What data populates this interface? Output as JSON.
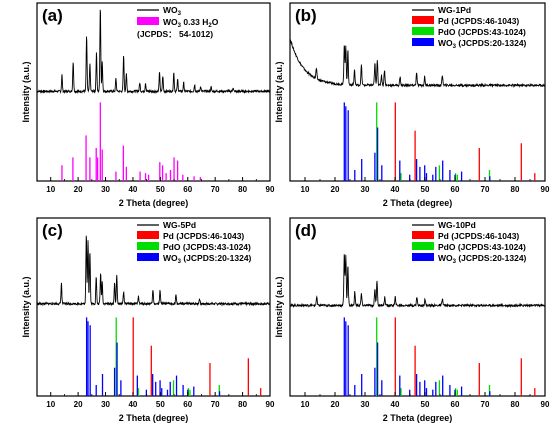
{
  "colors": {
    "xrd_pattern": "#000000",
    "wo3_hydrate_ref": "#ff00ff",
    "pd_ref": "#ff0000",
    "pdo_ref": "#00dd00",
    "wo3_ref": "#0000ff"
  },
  "chart_data": [
    {
      "panel": "(a)",
      "type": "line",
      "xlabel": "2 Theta (degree)",
      "ylabel": "Intensity (a.u.)",
      "xlim": [
        5,
        90
      ],
      "xticks": [
        10,
        20,
        30,
        40,
        50,
        60,
        70,
        80,
        90
      ],
      "legend": [
        {
          "label": "WO",
          "sub": "3",
          "rest": "",
          "color": "#000000",
          "kind": "line"
        },
        {
          "label": "WO",
          "sub": "3",
          "rest": " 0.33 H",
          "sub2": "2",
          "rest2": "O",
          "color": "#ff00ff",
          "kind": "box"
        },
        {
          "label": "(JCPDS： 54-1012)",
          "color": "none",
          "kind": "text"
        }
      ],
      "pattern": {
        "baseline": 0.05,
        "peaks": [
          [
            14.1,
            0.2
          ],
          [
            18.2,
            0.35
          ],
          [
            23.1,
            0.65
          ],
          [
            24.3,
            0.32
          ],
          [
            26.7,
            0.45
          ],
          [
            28.1,
            1.0
          ],
          [
            28.8,
            0.35
          ],
          [
            33.8,
            0.15
          ],
          [
            36.6,
            0.42
          ],
          [
            37.6,
            0.2
          ],
          [
            42.5,
            0.1
          ],
          [
            44.6,
            0.1
          ],
          [
            49.7,
            0.22
          ],
          [
            50.9,
            0.18
          ],
          [
            54.9,
            0.22
          ],
          [
            56.3,
            0.14
          ],
          [
            58.5,
            0.1
          ],
          [
            62.5,
            0.08
          ],
          [
            64.7,
            0.06
          ],
          [
            68.5,
            0.05
          ],
          [
            76.5,
            0.04
          ]
        ],
        "start_rise": 0.0
      },
      "references": [
        {
          "name": "WO3 0.33 H2O",
          "color": "#ff00ff",
          "lines": [
            [
              14.1,
              0.2
            ],
            [
              18.1,
              0.3
            ],
            [
              22.9,
              0.58
            ],
            [
              24.3,
              0.3
            ],
            [
              26.6,
              0.42
            ],
            [
              27.1,
              0.3
            ],
            [
              28.1,
              1.0
            ],
            [
              28.8,
              0.4
            ],
            [
              33.8,
              0.12
            ],
            [
              36.5,
              0.45
            ],
            [
              37.6,
              0.18
            ],
            [
              42.6,
              0.12
            ],
            [
              44.6,
              0.1
            ],
            [
              45.7,
              0.08
            ],
            [
              49.8,
              0.24
            ],
            [
              50.8,
              0.2
            ],
            [
              52.1,
              0.1
            ],
            [
              53.7,
              0.14
            ],
            [
              55.0,
              0.3
            ],
            [
              56.3,
              0.26
            ],
            [
              58.2,
              0.08
            ],
            [
              62.3,
              0.06
            ],
            [
              64.6,
              0.05
            ]
          ]
        }
      ]
    },
    {
      "panel": "(b)",
      "type": "line",
      "xlabel": "2 Theta (degree)",
      "ylabel": "Intensity (a.u.)",
      "xlim": [
        5,
        90
      ],
      "xticks": [
        10,
        20,
        30,
        40,
        50,
        60,
        70,
        80,
        90
      ],
      "legend": [
        {
          "label": "WG-1Pd",
          "color": "#000000",
          "kind": "line"
        },
        {
          "label": "Pd (JCPDS:46-1043)",
          "color": "#ff0000",
          "kind": "box"
        },
        {
          "label": "PdO (JCPDS:43-1024)",
          "color": "#00dd00",
          "kind": "box"
        },
        {
          "label": "WO",
          "sub": "3",
          "rest": " (JCPDS:20-1324)",
          "color": "#0000ff",
          "kind": "box"
        }
      ],
      "pattern": {
        "baseline": 0.12,
        "peaks": [
          [
            13.8,
            0.12
          ],
          [
            23.1,
            0.48
          ],
          [
            23.6,
            0.45
          ],
          [
            24.3,
            0.4
          ],
          [
            26.5,
            0.18
          ],
          [
            28.8,
            0.24
          ],
          [
            33.3,
            0.26
          ],
          [
            34.1,
            0.3
          ],
          [
            35.5,
            0.12
          ],
          [
            36.5,
            0.18
          ],
          [
            41.7,
            0.1
          ],
          [
            47.2,
            0.14
          ],
          [
            49.9,
            0.1
          ],
          [
            55.8,
            0.12
          ]
        ],
        "start_rise": 0.55
      },
      "references": [
        {
          "name": "Pd",
          "color": "#ff0000",
          "lines": [
            [
              40.1,
              1.0
            ],
            [
              46.7,
              0.64
            ],
            [
              68.1,
              0.42
            ],
            [
              82.1,
              0.48
            ],
            [
              86.6,
              0.1
            ]
          ]
        },
        {
          "name": "PdO",
          "color": "#00dd00",
          "lines": [
            [
              33.9,
              1.0
            ],
            [
              42.0,
              0.1
            ],
            [
              54.8,
              0.2
            ],
            [
              60.2,
              0.1
            ],
            [
              71.5,
              0.14
            ],
            [
              60.8,
              0.08
            ]
          ]
        },
        {
          "name": "WO3",
          "color": "#0000ff",
          "lines": [
            [
              23.1,
              1.0
            ],
            [
              23.6,
              0.95
            ],
            [
              24.4,
              0.9
            ],
            [
              26.6,
              0.14
            ],
            [
              28.9,
              0.28
            ],
            [
              33.3,
              0.36
            ],
            [
              34.2,
              0.68
            ],
            [
              35.6,
              0.2
            ],
            [
              41.6,
              0.26
            ],
            [
              44.9,
              0.08
            ],
            [
              47.2,
              0.28
            ],
            [
              48.3,
              0.18
            ],
            [
              49.9,
              0.2
            ],
            [
              50.5,
              0.1
            ],
            [
              52.6,
              0.08
            ],
            [
              53.6,
              0.18
            ],
            [
              55.9,
              0.26
            ],
            [
              58.3,
              0.14
            ],
            [
              60.0,
              0.08
            ],
            [
              62.2,
              0.12
            ],
            [
              71.6,
              0.06
            ]
          ]
        }
      ]
    },
    {
      "panel": "(c)",
      "type": "line",
      "xlabel": "2 Theta (degree)",
      "ylabel": "Intensity (a.u.)",
      "xlim": [
        5,
        90
      ],
      "xticks": [
        10,
        20,
        30,
        40,
        50,
        60,
        70,
        80,
        90
      ],
      "legend": [
        {
          "label": "WG-5Pd",
          "color": "#000000",
          "kind": "line"
        },
        {
          "label": "Pd (JCPDS:46-1043)",
          "color": "#ff0000",
          "kind": "box"
        },
        {
          "label": "PdO (JCPDS:43-1024)",
          "color": "#00dd00",
          "kind": "box"
        },
        {
          "label": "WO",
          "sub": "3",
          "rest": " (JCPDS:20-1324)",
          "color": "#0000ff",
          "kind": "box"
        }
      ],
      "pattern": {
        "baseline": 0.08,
        "peaks": [
          [
            13.9,
            0.24
          ],
          [
            23.0,
            0.82
          ],
          [
            23.6,
            0.75
          ],
          [
            24.3,
            0.62
          ],
          [
            26.6,
            0.32
          ],
          [
            28.2,
            0.36
          ],
          [
            28.8,
            0.26
          ],
          [
            33.3,
            0.24
          ],
          [
            34.1,
            0.34
          ],
          [
            36.6,
            0.14
          ],
          [
            42.0,
            0.1
          ],
          [
            47.3,
            0.16
          ],
          [
            49.9,
            0.16
          ],
          [
            55.7,
            0.1
          ],
          [
            64.3,
            0.06
          ]
        ],
        "start_rise": 0.0
      },
      "references": [
        {
          "name": "Pd",
          "color": "#ff0000",
          "lines": [
            [
              40.1,
              1.0
            ],
            [
              46.7,
              0.64
            ],
            [
              68.1,
              0.42
            ],
            [
              82.1,
              0.48
            ],
            [
              86.6,
              0.1
            ]
          ]
        },
        {
          "name": "PdO",
          "color": "#00dd00",
          "lines": [
            [
              33.9,
              1.0
            ],
            [
              42.0,
              0.1
            ],
            [
              54.8,
              0.2
            ],
            [
              60.2,
              0.1
            ],
            [
              71.5,
              0.14
            ],
            [
              60.8,
              0.08
            ]
          ]
        },
        {
          "name": "WO3",
          "color": "#0000ff",
          "lines": [
            [
              23.1,
              1.0
            ],
            [
              23.6,
              0.95
            ],
            [
              24.4,
              0.9
            ],
            [
              26.6,
              0.14
            ],
            [
              28.9,
              0.28
            ],
            [
              33.3,
              0.36
            ],
            [
              34.2,
              0.68
            ],
            [
              35.6,
              0.2
            ],
            [
              41.6,
              0.26
            ],
            [
              44.9,
              0.08
            ],
            [
              47.2,
              0.28
            ],
            [
              48.3,
              0.18
            ],
            [
              49.9,
              0.2
            ],
            [
              50.5,
              0.1
            ],
            [
              52.6,
              0.08
            ],
            [
              53.6,
              0.18
            ],
            [
              55.9,
              0.26
            ],
            [
              58.3,
              0.14
            ],
            [
              60.0,
              0.08
            ],
            [
              62.2,
              0.12
            ],
            [
              71.6,
              0.06
            ]
          ]
        }
      ]
    },
    {
      "panel": "(d)",
      "type": "line",
      "xlabel": "2 Theta (degree)",
      "ylabel": "Intensity (a.u.)",
      "xlim": [
        5,
        90
      ],
      "xticks": [
        10,
        20,
        30,
        40,
        50,
        60,
        70,
        80,
        90
      ],
      "legend": [
        {
          "label": "WG-10Pd",
          "color": "#000000",
          "kind": "line"
        },
        {
          "label": "Pd (JCPDS:46-1043)",
          "color": "#ff0000",
          "kind": "box"
        },
        {
          "label": "PdO (JCPDS:43-1024)",
          "color": "#00dd00",
          "kind": "box"
        },
        {
          "label": "WO",
          "sub": "3",
          "rest": " (JCPDS:20-1324)",
          "color": "#0000ff",
          "kind": "box"
        }
      ],
      "pattern": {
        "baseline": 0.06,
        "peaks": [
          [
            13.9,
            0.1
          ],
          [
            23.1,
            0.62
          ],
          [
            23.6,
            0.58
          ],
          [
            24.3,
            0.48
          ],
          [
            26.6,
            0.16
          ],
          [
            28.8,
            0.14
          ],
          [
            33.3,
            0.2
          ],
          [
            34.0,
            0.3
          ],
          [
            36.6,
            0.1
          ],
          [
            40.1,
            0.1
          ],
          [
            47.3,
            0.1
          ],
          [
            50.0,
            0.08
          ],
          [
            55.8,
            0.08
          ]
        ],
        "start_rise": 0.0
      },
      "references": [
        {
          "name": "Pd",
          "color": "#ff0000",
          "lines": [
            [
              40.1,
              1.0
            ],
            [
              46.7,
              0.64
            ],
            [
              68.1,
              0.42
            ],
            [
              82.1,
              0.48
            ],
            [
              86.6,
              0.1
            ]
          ]
        },
        {
          "name": "PdO",
          "color": "#00dd00",
          "lines": [
            [
              33.9,
              1.0
            ],
            [
              42.0,
              0.1
            ],
            [
              54.8,
              0.2
            ],
            [
              60.2,
              0.1
            ],
            [
              71.5,
              0.14
            ],
            [
              60.8,
              0.08
            ]
          ]
        },
        {
          "name": "WO3",
          "color": "#0000ff",
          "lines": [
            [
              23.1,
              1.0
            ],
            [
              23.6,
              0.95
            ],
            [
              24.4,
              0.9
            ],
            [
              26.6,
              0.14
            ],
            [
              28.9,
              0.28
            ],
            [
              33.3,
              0.36
            ],
            [
              34.2,
              0.68
            ],
            [
              35.6,
              0.2
            ],
            [
              41.6,
              0.26
            ],
            [
              44.9,
              0.08
            ],
            [
              47.2,
              0.28
            ],
            [
              48.3,
              0.18
            ],
            [
              49.9,
              0.2
            ],
            [
              50.5,
              0.1
            ],
            [
              52.6,
              0.08
            ],
            [
              53.6,
              0.18
            ],
            [
              55.9,
              0.26
            ],
            [
              58.3,
              0.14
            ],
            [
              60.0,
              0.08
            ],
            [
              62.2,
              0.12
            ],
            [
              71.6,
              0.06
            ]
          ]
        }
      ]
    }
  ]
}
